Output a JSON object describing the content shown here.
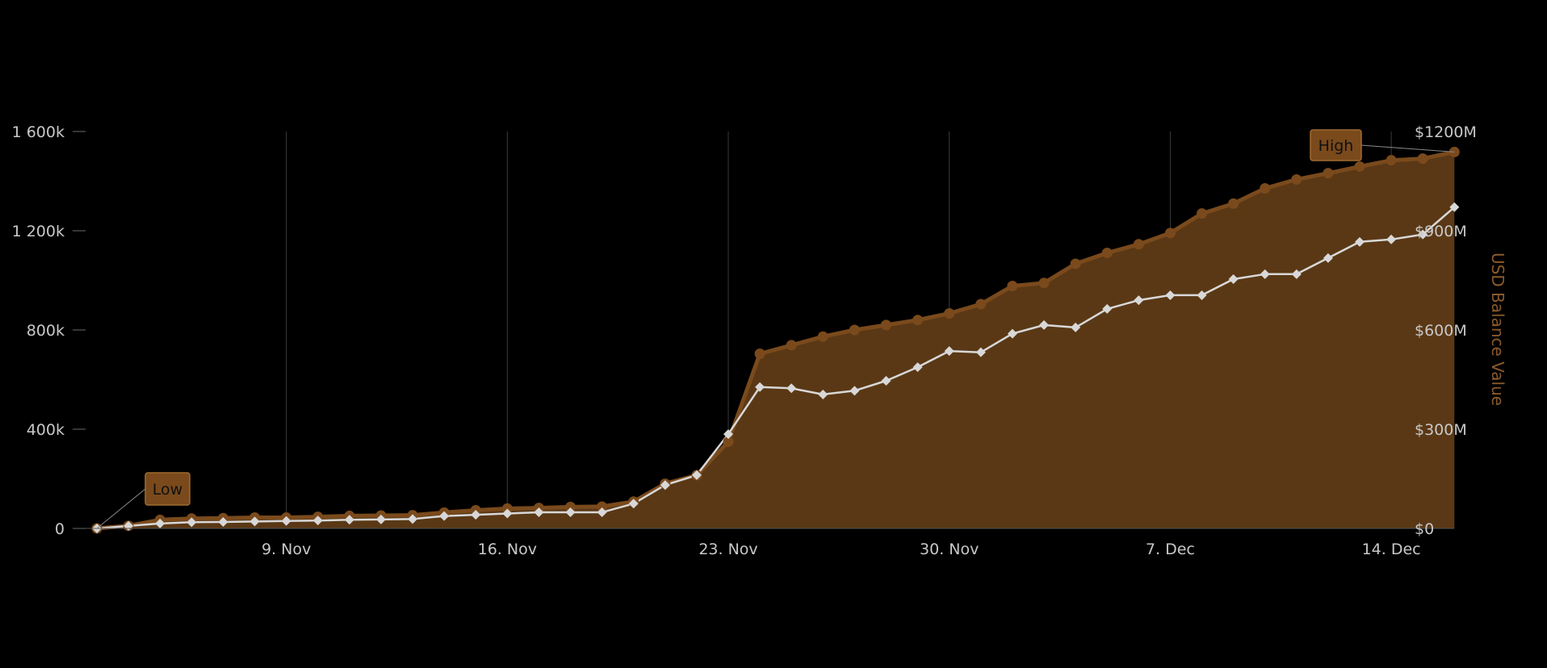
{
  "chart_data": {
    "type": "area",
    "x": [
      "Nov 3",
      "Nov 4",
      "Nov 5",
      "Nov 6",
      "Nov 7",
      "Nov 8",
      "Nov 9",
      "Nov 10",
      "Nov 11",
      "Nov 12",
      "Nov 13",
      "Nov 14",
      "Nov 15",
      "Nov 16",
      "Nov 17",
      "Nov 18",
      "Nov 19",
      "Nov 20",
      "Nov 21",
      "Nov 22",
      "Nov 23",
      "Nov 24",
      "Nov 25",
      "Nov 26",
      "Nov 27",
      "Nov 28",
      "Nov 29",
      "Nov 30",
      "Dec 1",
      "Dec 2",
      "Dec 3",
      "Dec 4",
      "Dec 5",
      "Dec 6",
      "Dec 7",
      "Dec 8",
      "Dec 9",
      "Dec 10",
      "Dec 11",
      "Dec 12",
      "Dec 13",
      "Dec 14",
      "Dec 15",
      "Dec 16"
    ],
    "x_ticks": [
      "9. Nov",
      "16. Nov",
      "23. Nov",
      "30. Nov",
      "7. Dec",
      "14. Dec"
    ],
    "x_tick_index": [
      6,
      13,
      20,
      27,
      34,
      41
    ],
    "y_left": {
      "ticks": [
        "0",
        "400k",
        "800k",
        "1 200k",
        "1 600k"
      ],
      "min": 0,
      "max": 1600000
    },
    "y_right": {
      "ticks": [
        "$0",
        "$300M",
        "$600M",
        "$900M",
        "$1200M"
      ],
      "min": 0,
      "max": 1200,
      "title": "USD Balance Value"
    },
    "series": [
      {
        "axis": "right",
        "style": "area-circles",
        "color": "#7a4a1c",
        "fill": "#5a3815",
        "values": [
          0,
          8,
          26,
          30,
          31,
          33,
          33,
          35,
          38,
          39,
          40,
          48,
          55,
          60,
          62,
          65,
          66,
          81,
          135,
          161,
          262,
          528,
          554,
          580,
          600,
          615,
          630,
          650,
          678,
          733,
          742,
          800,
          833,
          859,
          893,
          952,
          982,
          1028,
          1055,
          1074,
          1094,
          1113,
          1118,
          1138
        ]
      },
      {
        "axis": "left",
        "style": "line-diamonds",
        "color": "#d8d8d8",
        "values": [
          0,
          10000,
          20000,
          25000,
          26000,
          28000,
          30000,
          32000,
          35000,
          36000,
          38000,
          50000,
          55000,
          60000,
          65000,
          65000,
          65000,
          100000,
          175000,
          215000,
          380000,
          570000,
          565000,
          540000,
          555000,
          595000,
          650000,
          715000,
          710000,
          785000,
          820000,
          810000,
          885000,
          920000,
          940000,
          940000,
          1005000,
          1025000,
          1025000,
          1090000,
          1155000,
          1165000,
          1185000,
          1295000
        ]
      }
    ],
    "annotations": [
      {
        "text": "Low",
        "series": 1,
        "index": 0
      },
      {
        "text": "High",
        "series": 0,
        "index": 43
      }
    ],
    "grid": "vertical",
    "legend": "none"
  }
}
